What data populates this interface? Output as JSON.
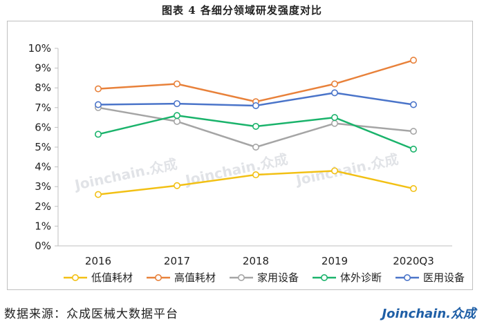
{
  "figure_title": "图表 4   各细分领域研发强度对比",
  "source_text": "数据来源：众成医械大数据平台",
  "brand_text": "Joinchain.众成",
  "watermark_text": "Joinchain.众成",
  "chart_data": {
    "type": "line",
    "categories": [
      "2016",
      "2017",
      "2018",
      "2019",
      "2020Q3"
    ],
    "ylim": [
      0,
      10
    ],
    "yticks": [
      0,
      1,
      2,
      3,
      4,
      5,
      6,
      7,
      8,
      9,
      10
    ],
    "ytick_labels": [
      "0%",
      "1%",
      "2%",
      "3%",
      "4%",
      "5%",
      "6%",
      "7%",
      "8%",
      "9%",
      "10%"
    ],
    "grid": false,
    "legend_position": "bottom",
    "series": [
      {
        "name": "低值耗材",
        "color": "#f2c014",
        "values": [
          2.6,
          3.05,
          3.6,
          3.8,
          2.9
        ]
      },
      {
        "name": "高值耗材",
        "color": "#e8813a",
        "values": [
          7.95,
          8.2,
          7.3,
          8.2,
          9.4
        ]
      },
      {
        "name": "家用设备",
        "color": "#a5a5a5",
        "values": [
          7.0,
          6.3,
          5.0,
          6.2,
          5.8
        ]
      },
      {
        "name": "体外诊断",
        "color": "#1ab36b",
        "values": [
          5.65,
          6.6,
          6.05,
          6.5,
          4.9
        ]
      },
      {
        "name": "医用设备",
        "color": "#4a74c9",
        "values": [
          7.15,
          7.2,
          7.1,
          7.75,
          7.15
        ]
      }
    ]
  }
}
